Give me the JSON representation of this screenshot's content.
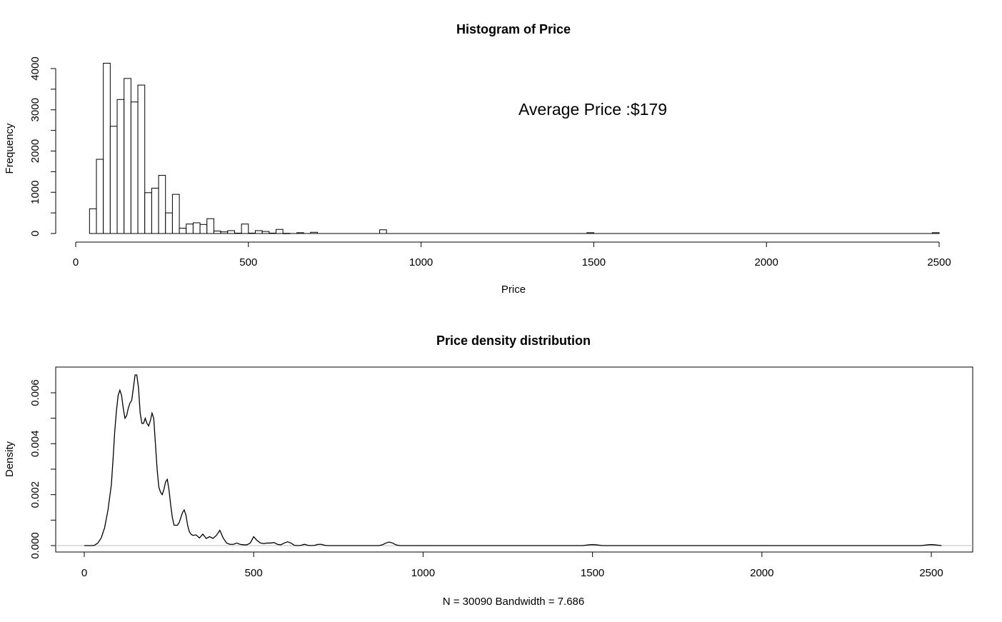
{
  "chart_data": [
    {
      "type": "bar",
      "title": "Histogram of Price",
      "xlabel": "Price",
      "ylabel": "Frequency",
      "annotation": "Average Price :$179",
      "xlim": [
        0,
        2500
      ],
      "ylim": [
        0,
        4000
      ],
      "x_ticks": [
        "0",
        "500",
        "1000",
        "1500",
        "2000",
        "2500"
      ],
      "y_ticks": [
        "0",
        "1000",
        "2000",
        "3000",
        "4000"
      ],
      "bin_width": 20,
      "bins": [
        {
          "x0": 40,
          "value": 600
        },
        {
          "x0": 60,
          "value": 1800
        },
        {
          "x0": 80,
          "value": 4130
        },
        {
          "x0": 100,
          "value": 2600
        },
        {
          "x0": 120,
          "value": 3250
        },
        {
          "x0": 140,
          "value": 3760
        },
        {
          "x0": 160,
          "value": 3190
        },
        {
          "x0": 180,
          "value": 3600
        },
        {
          "x0": 200,
          "value": 990
        },
        {
          "x0": 220,
          "value": 1100
        },
        {
          "x0": 240,
          "value": 1410
        },
        {
          "x0": 260,
          "value": 500
        },
        {
          "x0": 280,
          "value": 950
        },
        {
          "x0": 300,
          "value": 130
        },
        {
          "x0": 320,
          "value": 230
        },
        {
          "x0": 340,
          "value": 260
        },
        {
          "x0": 360,
          "value": 220
        },
        {
          "x0": 380,
          "value": 360
        },
        {
          "x0": 400,
          "value": 60
        },
        {
          "x0": 420,
          "value": 40
        },
        {
          "x0": 440,
          "value": 70
        },
        {
          "x0": 460,
          "value": 10
        },
        {
          "x0": 480,
          "value": 230
        },
        {
          "x0": 500,
          "value": 10
        },
        {
          "x0": 520,
          "value": 70
        },
        {
          "x0": 540,
          "value": 50
        },
        {
          "x0": 560,
          "value": 10
        },
        {
          "x0": 580,
          "value": 100
        },
        {
          "x0": 600,
          "value": 5
        },
        {
          "x0": 640,
          "value": 20
        },
        {
          "x0": 680,
          "value": 30
        },
        {
          "x0": 880,
          "value": 90
        },
        {
          "x0": 1480,
          "value": 20
        },
        {
          "x0": 2480,
          "value": 20
        }
      ]
    },
    {
      "type": "line",
      "title": "Price density distribution",
      "xlabel": "N = 30090   Bandwidth = 7.686",
      "ylabel": "Density",
      "xlim": [
        -90,
        2600
      ],
      "ylim": [
        -0.00025,
        0.007
      ],
      "x_ticks": [
        "0",
        "500",
        "1000",
        "1500",
        "2000",
        "2500"
      ],
      "y_ticks": [
        "0.000",
        "0.002",
        "0.004",
        "0.006"
      ],
      "series": [
        {
          "x": [
            0,
            20,
            30,
            40,
            50,
            60,
            70,
            80,
            85,
            90,
            95,
            100,
            105,
            110,
            115,
            120,
            125,
            130,
            135,
            140,
            145,
            150,
            155,
            160,
            165,
            170,
            175,
            180,
            185,
            190,
            195,
            200,
            205,
            210,
            215,
            220,
            225,
            230,
            235,
            240,
            245,
            250,
            255,
            260,
            265,
            270,
            275,
            280,
            285,
            290,
            295,
            300,
            305,
            310,
            315,
            320,
            330,
            340,
            350,
            360,
            370,
            380,
            390,
            400,
            410,
            420,
            430,
            440,
            450,
            460,
            470,
            480,
            490,
            500,
            510,
            520,
            530,
            540,
            550,
            560,
            570,
            580,
            590,
            600,
            610,
            620,
            630,
            640,
            650,
            660,
            670,
            680,
            690,
            700,
            710,
            720,
            800,
            870,
            880,
            890,
            900,
            910,
            920,
            930,
            1000,
            1200,
            1400,
            1470,
            1490,
            1500,
            1510,
            1530,
            1800,
            2100,
            2400,
            2470,
            2490,
            2500,
            2510,
            2530
          ],
          "y": [
            0,
            0,
            1e-05,
            0.0001,
            0.0003,
            0.0007,
            0.0014,
            0.0024,
            0.0034,
            0.0045,
            0.0053,
            0.0059,
            0.0061,
            0.0059,
            0.0054,
            0.005,
            0.0051,
            0.0054,
            0.0056,
            0.0057,
            0.0062,
            0.0067,
            0.0067,
            0.0062,
            0.0052,
            0.0048,
            0.0048,
            0.005,
            0.0048,
            0.0047,
            0.0049,
            0.0052,
            0.005,
            0.004,
            0.003,
            0.0023,
            0.0021,
            0.002,
            0.0022,
            0.0025,
            0.0026,
            0.0022,
            0.0016,
            0.0011,
            0.0008,
            0.0008,
            0.0008,
            0.0009,
            0.0011,
            0.0013,
            0.0014,
            0.0012,
            0.0008,
            0.00055,
            0.00045,
            0.0004,
            0.00042,
            0.0003,
            0.00045,
            0.00028,
            0.00035,
            0.00028,
            0.0004,
            0.0006,
            0.0003,
            0.0001,
            5e-05,
            5e-05,
            0.0001,
            5e-05,
            3e-05,
            3e-05,
            0.0001,
            0.00035,
            0.0002,
            0.0001,
            8e-05,
            0.0001,
            0.0001,
            0.00012,
            5e-05,
            3e-05,
            0.0001,
            0.00015,
            0.0001,
            1e-05,
            0,
            1e-05,
            5e-05,
            1e-05,
            0,
            1e-05,
            5e-05,
            5e-05,
            1e-05,
            0,
            0,
            0,
            3e-05,
            0.0001,
            0.00014,
            0.0001,
            3e-05,
            0,
            0,
            0,
            0,
            0,
            3e-05,
            4e-05,
            3e-05,
            0,
            0,
            0,
            0,
            0,
            3e-05,
            4e-05,
            3e-05,
            0
          ]
        }
      ]
    }
  ]
}
